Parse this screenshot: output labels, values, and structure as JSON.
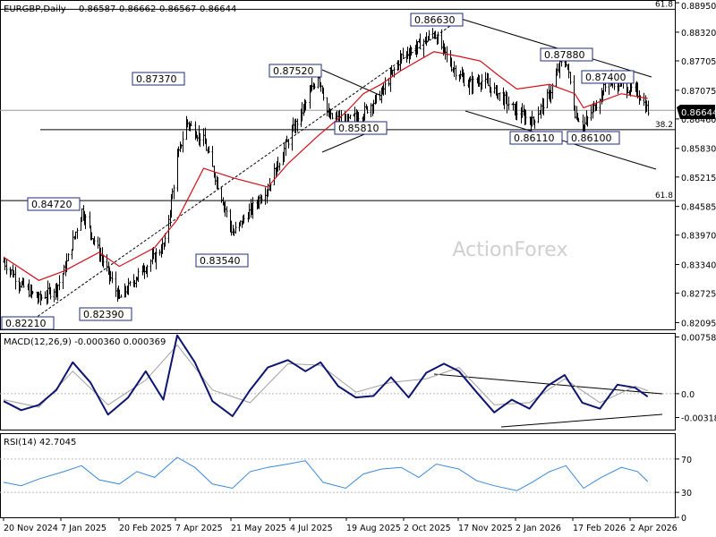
{
  "chart_data": [
    {
      "type": "line",
      "panel": "price",
      "title": "EURGBP,Daily",
      "ohlc": {
        "open": "0.86587",
        "high": "0.86662",
        "low": "0.86567",
        "close": "0.86644"
      },
      "watermark": "ActionForex",
      "ylim": [
        0.8195,
        0.8899
      ],
      "y_ticks": [
        "0.88950",
        "0.88320",
        "0.87705",
        "0.87075",
        "0.86460",
        "0.85830",
        "0.85215",
        "0.84585",
        "0.83970",
        "0.83340",
        "0.82725",
        "0.82095"
      ],
      "current_price": "0.86644",
      "grid": false,
      "series": [
        {
          "name": "",
          "line_style": "close",
          "color": "#000000",
          "x": [
            "2024-11-20",
            "2024-12-04",
            "2024-12-18",
            "2025-01-01",
            "2025-01-07",
            "2025-01-21",
            "2025-02-04",
            "2025-02-20",
            "2025-03-06",
            "2025-03-20",
            "2025-03-28",
            "2025-04-07",
            "2025-04-14",
            "2025-04-28",
            "2025-05-12",
            "2025-05-21",
            "2025-06-04",
            "2025-06-18",
            "2025-07-04",
            "2025-07-18",
            "2025-07-28",
            "2025-08-01",
            "2025-08-05",
            "2025-08-19",
            "2025-09-02",
            "2025-09-16",
            "2025-10-02",
            "2025-10-14",
            "2025-10-28",
            "2025-11-11",
            "2025-11-17",
            "2025-11-24",
            "2025-12-04",
            "2025-12-18",
            "2026-01-02",
            "2026-01-14",
            "2026-01-28",
            "2026-02-05",
            "2026-02-10",
            "2026-02-17",
            "2026-02-24",
            "2026-03-06",
            "2026-03-16",
            "2026-03-26",
            "2026-04-02",
            "2026-04-09",
            "2026-04-16"
          ],
          "values": [
            0.834,
            0.829,
            0.826,
            0.8285,
            0.832,
            0.845,
            0.836,
            0.826,
            0.831,
            0.835,
            0.838,
            0.856,
            0.864,
            0.86,
            0.848,
            0.84,
            0.845,
            0.85,
            0.86,
            0.868,
            0.874,
            0.87,
            0.865,
            0.864,
            0.866,
            0.87,
            0.878,
            0.88,
            0.883,
            0.876,
            0.874,
            0.872,
            0.873,
            0.87,
            0.866,
            0.864,
            0.87,
            0.876,
            0.877,
            0.866,
            0.863,
            0.868,
            0.873,
            0.872,
            0.871,
            0.87,
            0.8664
          ]
        },
        {
          "name": "",
          "line_style": "moving-average",
          "color": "#d0101a",
          "x": [
            "2024-11-20",
            "2024-12-18",
            "2025-01-07",
            "2025-02-04",
            "2025-02-20",
            "2025-03-20",
            "2025-04-07",
            "2025-04-28",
            "2025-05-21",
            "2025-06-18",
            "2025-07-04",
            "2025-07-28",
            "2025-08-19",
            "2025-09-02",
            "2025-09-16",
            "2025-10-02",
            "2025-10-28",
            "2025-11-17",
            "2025-12-04",
            "2025-12-18",
            "2026-01-02",
            "2026-01-28",
            "2026-02-17",
            "2026-02-24",
            "2026-03-06",
            "2026-03-26",
            "2026-04-16"
          ],
          "values": [
            0.835,
            0.83,
            0.832,
            0.836,
            0.833,
            0.837,
            0.843,
            0.854,
            0.852,
            0.85,
            0.855,
            0.861,
            0.866,
            0.87,
            0.872,
            0.875,
            0.879,
            0.878,
            0.877,
            0.874,
            0.871,
            0.872,
            0.87,
            0.867,
            0.868,
            0.87,
            0.869
          ]
        }
      ],
      "annotations": [
        "0.86630",
        "0.87880",
        "0.87400",
        "0.87370",
        "0.87520",
        "0.85810",
        "0.84720",
        "0.83540",
        "0.82390",
        "0.82210",
        "0.86110",
        "0.86100"
      ],
      "fib_levels": [
        {
          "label": "61.8",
          "price": 0.8881
        },
        {
          "label": "38.2",
          "price": 0.8623
        },
        {
          "label": "61.8",
          "price": 0.8471
        }
      ]
    },
    {
      "type": "line",
      "panel": "macd",
      "title": "MACD(12,26,9) -0.000360 0.000369",
      "ylim": [
        -0.0048,
        0.008
      ],
      "y_ticks": [
        "0.007581",
        "0.0",
        "-0.003183"
      ],
      "series": [
        {
          "name": "",
          "line_style": "macd",
          "color": "#0d1570",
          "x": [
            "2024-11-20",
            "2024-12-04",
            "2024-12-18",
            "2025-01-01",
            "2025-01-14",
            "2025-01-28",
            "2025-02-11",
            "2025-02-27",
            "2025-03-13",
            "2025-03-27",
            "2025-04-07",
            "2025-04-21",
            "2025-05-05",
            "2025-05-21",
            "2025-06-04",
            "2025-06-18",
            "2025-07-04",
            "2025-07-18",
            "2025-07-30",
            "2025-08-13",
            "2025-08-27",
            "2025-09-10",
            "2025-09-24",
            "2025-10-08",
            "2025-10-22",
            "2025-11-05",
            "2025-11-17",
            "2025-12-01",
            "2025-12-15",
            "2025-12-29",
            "2026-01-12",
            "2026-01-26",
            "2026-02-09",
            "2026-02-23",
            "2026-03-09",
            "2026-03-23",
            "2026-04-06",
            "2026-04-16"
          ],
          "values": [
            -0.001,
            -0.0022,
            -0.0015,
            0.0005,
            0.0042,
            0.0015,
            -0.0028,
            -0.0005,
            0.003,
            -0.0008,
            0.0078,
            0.0042,
            -0.001,
            -0.003,
            0.0005,
            0.0035,
            0.0045,
            0.003,
            0.0042,
            0.001,
            -0.0005,
            -0.0003,
            0.0022,
            -0.0005,
            0.0028,
            0.004,
            0.003,
            0.0002,
            -0.0025,
            -0.0008,
            -0.002,
            0.001,
            0.0025,
            -0.0012,
            -0.002,
            0.0012,
            0.0008,
            -0.0004
          ]
        },
        {
          "name": "",
          "line_style": "signal",
          "color": "#a0a0a0",
          "x": [
            "2024-11-20",
            "2024-12-18",
            "2025-01-14",
            "2025-02-11",
            "2025-03-13",
            "2025-04-07",
            "2025-05-05",
            "2025-06-04",
            "2025-07-04",
            "2025-07-30",
            "2025-08-27",
            "2025-09-24",
            "2025-10-22",
            "2025-11-17",
            "2025-12-15",
            "2026-01-12",
            "2026-02-09",
            "2026-03-09",
            "2026-04-06",
            "2026-04-16"
          ],
          "values": [
            -0.0008,
            -0.0018,
            0.003,
            -0.0015,
            0.0018,
            0.0065,
            0.0005,
            -0.0012,
            0.004,
            0.0038,
            0.0002,
            0.0015,
            0.002,
            0.0035,
            -0.0015,
            -0.0012,
            0.002,
            -0.0012,
            0.001,
            0.0004
          ]
        }
      ]
    },
    {
      "type": "line",
      "panel": "rsi",
      "title": "RSI(14) 42.7045",
      "ylim": [
        0,
        100
      ],
      "y_ticks": [
        "70",
        "30",
        "0"
      ],
      "series": [
        {
          "name": "",
          "line_style": "rsi",
          "color": "#3a88d8",
          "x": [
            "2024-11-20",
            "2024-12-04",
            "2024-12-18",
            "2025-01-07",
            "2025-01-21",
            "2025-02-04",
            "2025-02-20",
            "2025-03-06",
            "2025-03-20",
            "2025-04-07",
            "2025-04-21",
            "2025-05-05",
            "2025-05-21",
            "2025-06-04",
            "2025-06-18",
            "2025-07-04",
            "2025-07-18",
            "2025-08-01",
            "2025-08-19",
            "2025-09-02",
            "2025-09-16",
            "2025-10-02",
            "2025-10-16",
            "2025-10-30",
            "2025-11-17",
            "2025-12-01",
            "2025-12-15",
            "2026-01-02",
            "2026-01-14",
            "2026-01-28",
            "2026-02-10",
            "2026-02-24",
            "2026-03-10",
            "2026-03-26",
            "2026-04-08",
            "2026-04-16"
          ],
          "values": [
            42,
            38,
            46,
            55,
            62,
            45,
            40,
            55,
            48,
            72,
            60,
            40,
            35,
            55,
            60,
            64,
            68,
            42,
            35,
            52,
            58,
            60,
            48,
            64,
            58,
            44,
            38,
            32,
            42,
            55,
            62,
            35,
            48,
            60,
            55,
            43
          ]
        }
      ]
    }
  ],
  "x_axis": {
    "tick_labels": [
      "20 Nov 2024",
      "7 Jan 2025",
      "20 Feb 2025",
      "7 Apr 2025",
      "21 May 2025",
      "4 Jul 2025",
      "19 Aug 2025",
      "2 Oct 2025",
      "17 Nov 2025",
      "2 Jan 2026",
      "17 Feb 2026",
      "2 Apr 2026"
    ]
  }
}
